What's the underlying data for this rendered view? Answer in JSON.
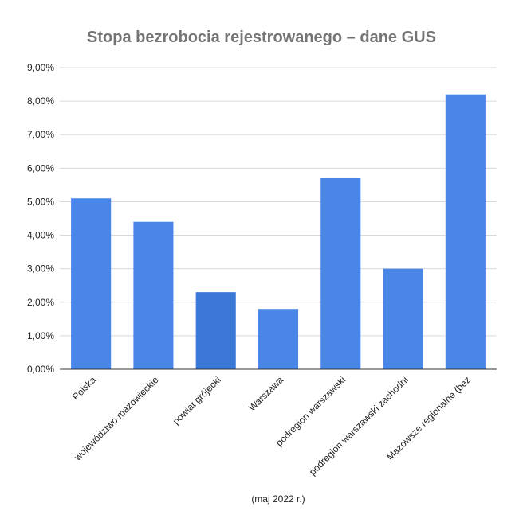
{
  "chart_data": {
    "type": "bar",
    "title": "Stopa bezrobocia rejestrowanego – dane GUS",
    "xlabel": "(maj 2022 r.)",
    "ylabel": "",
    "ylim": [
      0,
      9
    ],
    "y_tick_step": 1,
    "y_tick_labels": [
      "0,00%",
      "1,00%",
      "2,00%",
      "3,00%",
      "4,00%",
      "5,00%",
      "6,00%",
      "7,00%",
      "8,00%",
      "9,00%"
    ],
    "grid": true,
    "legend": "none",
    "categories": [
      "Polska",
      "województwo mazowieckie",
      "powiat grójecki",
      "Warszawa",
      "podregion warszawski",
      "podregion warszawski zachodni",
      "Mazowsze regionalne (bez"
    ],
    "values": [
      5.1,
      4.4,
      2.3,
      1.8,
      5.7,
      3.0,
      8.2
    ],
    "colors": {
      "bar": "#4a86e8",
      "highlight_bar": "#3c78d8",
      "highlight_index": 2
    }
  }
}
